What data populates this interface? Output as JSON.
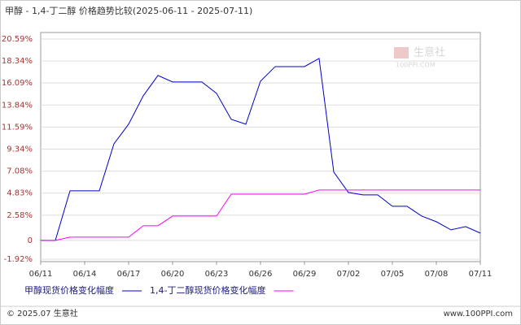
{
  "chart_data": {
    "type": "line",
    "title": "甲醇 - 1,4-丁二醇 价格趋势比较(2025-06-11 - 2025-07-11)",
    "categories": [
      "06/11",
      null,
      null,
      "06/14",
      null,
      null,
      "06/17",
      null,
      null,
      "06/20",
      null,
      null,
      "06/23",
      null,
      null,
      "06/26",
      null,
      null,
      "06/29",
      null,
      null,
      "07/02",
      null,
      null,
      "07/05",
      null,
      null,
      "07/08",
      null,
      null,
      "07/11"
    ],
    "series": [
      {
        "name": "甲醇现货价格变化幅度",
        "color": "#0000cc",
        "values": [
          0,
          0,
          5.07,
          5.07,
          5.07,
          9.88,
          11.88,
          14.78,
          16.86,
          16.2,
          16.2,
          16.2,
          15.03,
          12.38,
          11.88,
          16.28,
          17.77,
          17.77,
          17.77,
          18.6,
          6.98,
          4.9,
          4.65,
          4.65,
          3.49,
          3.49,
          2.49,
          1.91,
          1.08,
          1.41,
          0.75
        ]
      },
      {
        "name": "1,4-丁二醇现货价格变化幅度",
        "color": "#ff00ff",
        "values": [
          0,
          0,
          0.33,
          0.33,
          0.33,
          0.33,
          0.33,
          1.5,
          1.5,
          2.49,
          2.49,
          2.49,
          2.49,
          4.73,
          4.73,
          4.73,
          4.73,
          4.73,
          4.73,
          5.15,
          5.15,
          5.15,
          5.15,
          5.15,
          5.15,
          5.15,
          5.15,
          5.15,
          5.15,
          5.15,
          5.15
        ]
      }
    ],
    "ylim": [
      -1.92,
      20.59
    ],
    "yticks": [
      {
        "value": -1.92,
        "label": "-1.92%"
      },
      0,
      {
        "value": 2.58,
        "label": "2.58%"
      },
      {
        "value": 4.83,
        "label": "4.83%"
      },
      {
        "value": 7.08,
        "label": "7.08%"
      },
      {
        "value": 9.34,
        "label": "9.34%"
      },
      {
        "value": 11.59,
        "label": "11.59%"
      },
      {
        "value": 13.84,
        "label": "13.84%"
      },
      {
        "value": 16.09,
        "label": "16.09%"
      },
      {
        "value": 18.34,
        "label": "18.34%"
      },
      {
        "value": 20.59,
        "label": "20.59%"
      }
    ],
    "grid": true
  },
  "watermark": {
    "name": "生意社",
    "site": "100PPI.COM"
  },
  "footer": {
    "left": "© 2025.07 生意社",
    "right": "www.100PPI.com"
  }
}
